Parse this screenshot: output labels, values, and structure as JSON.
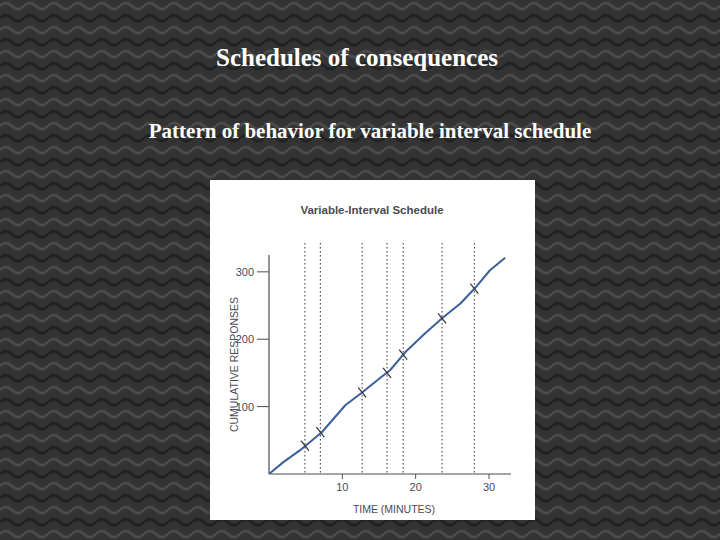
{
  "slide": {
    "title": "Schedules of consequences",
    "subtitle": "Pattern of behavior for variable interval schedule"
  },
  "chart_data": {
    "type": "line",
    "title": "Variable-Interval Schedule",
    "x_label": "TIME (MINUTES)",
    "y_label": "CUMULATIVE RESPONSES",
    "x": [
      0,
      2,
      4.2,
      7.2,
      10.4,
      12.7,
      15.1,
      16.5,
      18.6,
      21.3,
      23.6,
      26.1,
      28.1,
      30.1,
      32.2
    ],
    "values": [
      0,
      18,
      35,
      62,
      102,
      121,
      142,
      154,
      181,
      209,
      231,
      253,
      276,
      302,
      321
    ],
    "reinforcement_x": [
      4.9,
      7.0,
      12.7,
      16.1,
      18.3,
      23.6,
      28.0
    ],
    "reinforcement_values": [
      42,
      62,
      121,
      150,
      177,
      231,
      275
    ],
    "color": "#3b5f9e",
    "line_style": "solid",
    "grid": false,
    "xlim": [
      0,
      33
    ],
    "ylim": [
      0,
      325
    ],
    "xticks": [
      10,
      20,
      30
    ],
    "yticks": [
      100,
      200,
      300
    ]
  }
}
